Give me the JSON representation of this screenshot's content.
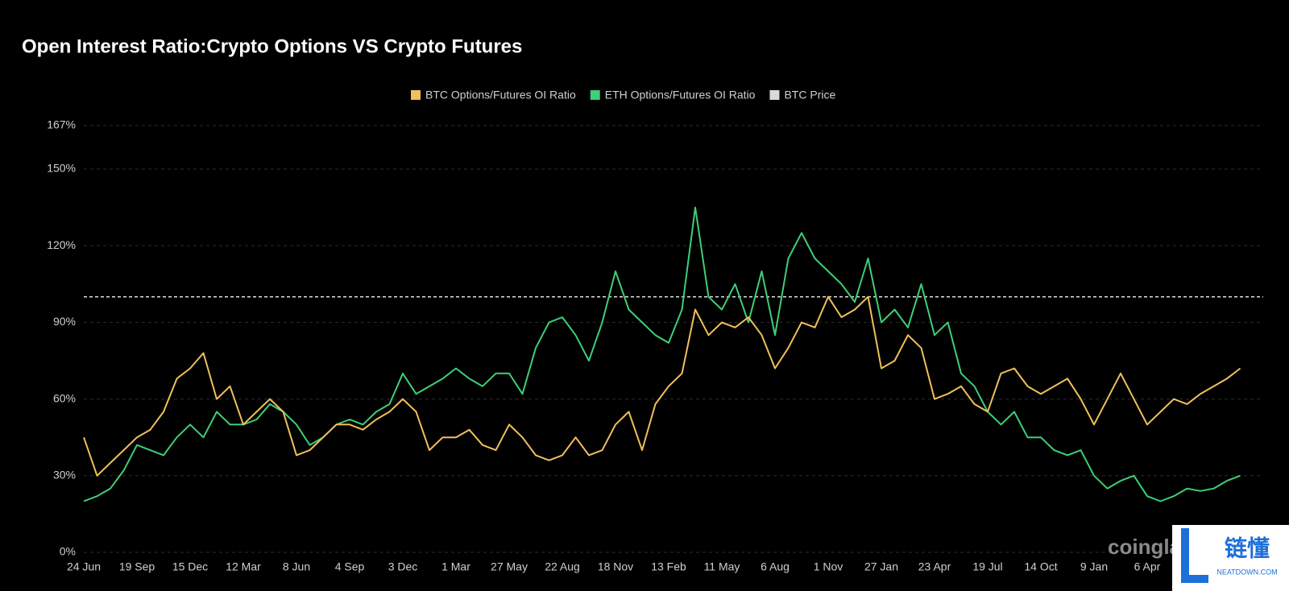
{
  "chart_data": {
    "type": "line",
    "title": "Open Interest Ratio:Crypto Options VS Crypto Futures",
    "categories": [
      "24 Jun",
      null,
      null,
      null,
      "19 Sep",
      null,
      null,
      null,
      "15 Dec",
      null,
      null,
      null,
      "12 Mar",
      null,
      null,
      null,
      "8 Jun",
      null,
      null,
      null,
      "4 Sep",
      null,
      null,
      null,
      "3 Dec",
      null,
      null,
      null,
      "1 Mar",
      null,
      null,
      null,
      "27 May",
      null,
      null,
      null,
      "22 Aug",
      null,
      null,
      null,
      "18 Nov",
      null,
      null,
      null,
      "13 Feb",
      null,
      null,
      null,
      "11 May",
      null,
      null,
      null,
      "6 Aug",
      null,
      null,
      null,
      "1 Nov",
      null,
      null,
      null,
      "27 Jan",
      null,
      null,
      null,
      "23 Apr",
      null,
      null,
      null,
      "19 Jul",
      null,
      null,
      null,
      "14 Oct",
      null,
      null,
      null,
      "9 Jan",
      null,
      null,
      null,
      "6 Apr",
      null,
      null,
      null,
      null,
      null,
      null,
      null
    ],
    "series": [
      {
        "name": "BTC Options/Futures OI Ratio",
        "color": "#f0c05a",
        "values": [
          45,
          30,
          35,
          40,
          45,
          48,
          55,
          68,
          72,
          78,
          60,
          65,
          50,
          55,
          60,
          55,
          38,
          40,
          45,
          50,
          50,
          48,
          52,
          55,
          60,
          55,
          40,
          45,
          45,
          48,
          42,
          40,
          50,
          45,
          38,
          36,
          38,
          45,
          38,
          40,
          50,
          55,
          40,
          58,
          65,
          70,
          95,
          85,
          90,
          88,
          92,
          85,
          72,
          80,
          90,
          88,
          100,
          92,
          95,
          100,
          72,
          75,
          85,
          80,
          60,
          62,
          65,
          58,
          55,
          70,
          72,
          65,
          62,
          65,
          68,
          60,
          50,
          60,
          70,
          60,
          50,
          55,
          60,
          58,
          62,
          65,
          68,
          72
        ]
      },
      {
        "name": "ETH Options/Futures OI Ratio",
        "color": "#3ecf78",
        "values": [
          20,
          22,
          25,
          32,
          42,
          40,
          38,
          45,
          50,
          45,
          55,
          50,
          50,
          52,
          58,
          55,
          50,
          42,
          45,
          50,
          52,
          50,
          55,
          58,
          70,
          62,
          65,
          68,
          72,
          68,
          65,
          70,
          70,
          62,
          80,
          90,
          92,
          85,
          75,
          90,
          110,
          95,
          90,
          85,
          82,
          95,
          135,
          100,
          95,
          105,
          90,
          110,
          85,
          115,
          125,
          115,
          110,
          105,
          98,
          115,
          90,
          95,
          88,
          105,
          85,
          90,
          70,
          65,
          55,
          50,
          55,
          45,
          45,
          40,
          38,
          40,
          30,
          25,
          28,
          30,
          22,
          20,
          22,
          25,
          24,
          25,
          28,
          30
        ]
      },
      {
        "name": "BTC Price",
        "color": "#d9d9d9",
        "values": [
          null,
          null,
          null,
          null,
          null,
          null,
          null,
          null,
          null,
          null,
          null,
          null,
          null,
          null,
          null,
          null,
          null,
          null,
          null,
          null,
          null,
          null,
          null,
          null,
          null,
          null,
          null,
          null,
          null,
          null,
          null,
          null,
          null,
          null,
          null,
          null,
          null,
          null,
          null,
          null,
          null,
          null,
          null,
          null,
          null,
          null,
          null,
          null,
          null,
          null,
          null,
          null,
          null,
          null,
          null,
          null,
          null,
          null,
          null,
          null,
          null,
          null,
          null,
          null,
          null,
          null,
          null,
          null,
          null,
          null,
          null,
          null,
          null,
          null,
          null,
          null,
          null,
          null,
          null,
          null,
          null,
          null,
          null,
          null,
          null,
          null,
          null,
          null
        ]
      }
    ],
    "ylim": [
      0,
      167
    ],
    "yticks": [
      {
        "value": 0,
        "label": "0%"
      },
      {
        "value": 30,
        "label": "30%"
      },
      {
        "value": 60,
        "label": "60%"
      },
      {
        "value": 90,
        "label": "90%"
      },
      {
        "value": 120,
        "label": "120%"
      },
      {
        "value": 150,
        "label": "150%"
      },
      {
        "value": 167,
        "label": "167%"
      }
    ],
    "reference_line": 100,
    "grid": true,
    "legend": "top",
    "watermark": "coinglass",
    "badge": {
      "title": "链懂",
      "subtitle": "NEATDOWN.COM"
    }
  }
}
